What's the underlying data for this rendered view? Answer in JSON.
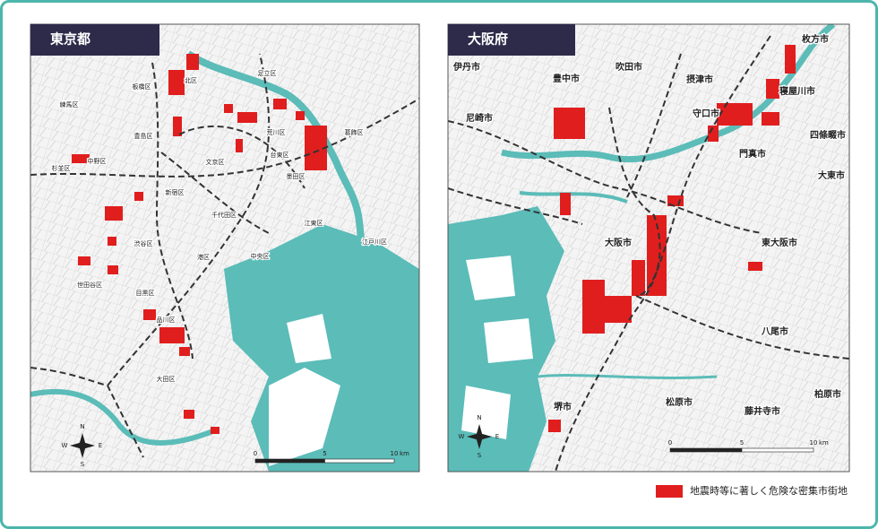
{
  "panels": [
    {
      "title": "東京都",
      "labels": [
        "北区",
        "足立区",
        "板橋区",
        "練馬区",
        "豊島区",
        "荒川区",
        "葛飾区",
        "中野区",
        "台東区",
        "文京区",
        "杉並区",
        "墨田区",
        "新宿区",
        "千代田区",
        "江東区",
        "渋谷区",
        "中央区",
        "江戸川区",
        "港区",
        "世田谷区",
        "目黒区",
        "品川区",
        "大田区"
      ],
      "compass": [
        "N",
        "E",
        "S",
        "W"
      ],
      "scale": {
        "ticks": [
          "0",
          "5",
          "10"
        ],
        "unit": "km"
      }
    },
    {
      "title": "大阪府",
      "labels": [
        "豊中市",
        "吹田市",
        "摂津市",
        "枚方市",
        "寝屋川市",
        "守口市",
        "四條畷市",
        "門真市",
        "大東市",
        "大阪市",
        "東大阪市",
        "八尾市",
        "堺市",
        "松原市",
        "藤井寺市",
        "柏原市",
        "伊丹市",
        "尼崎市"
      ],
      "compass": [
        "N",
        "E",
        "S",
        "W"
      ],
      "scale": {
        "ticks": [
          "0",
          "5",
          "10"
        ],
        "unit": "km"
      }
    }
  ],
  "legend": "地震時等に著しく危険な密集市街地"
}
